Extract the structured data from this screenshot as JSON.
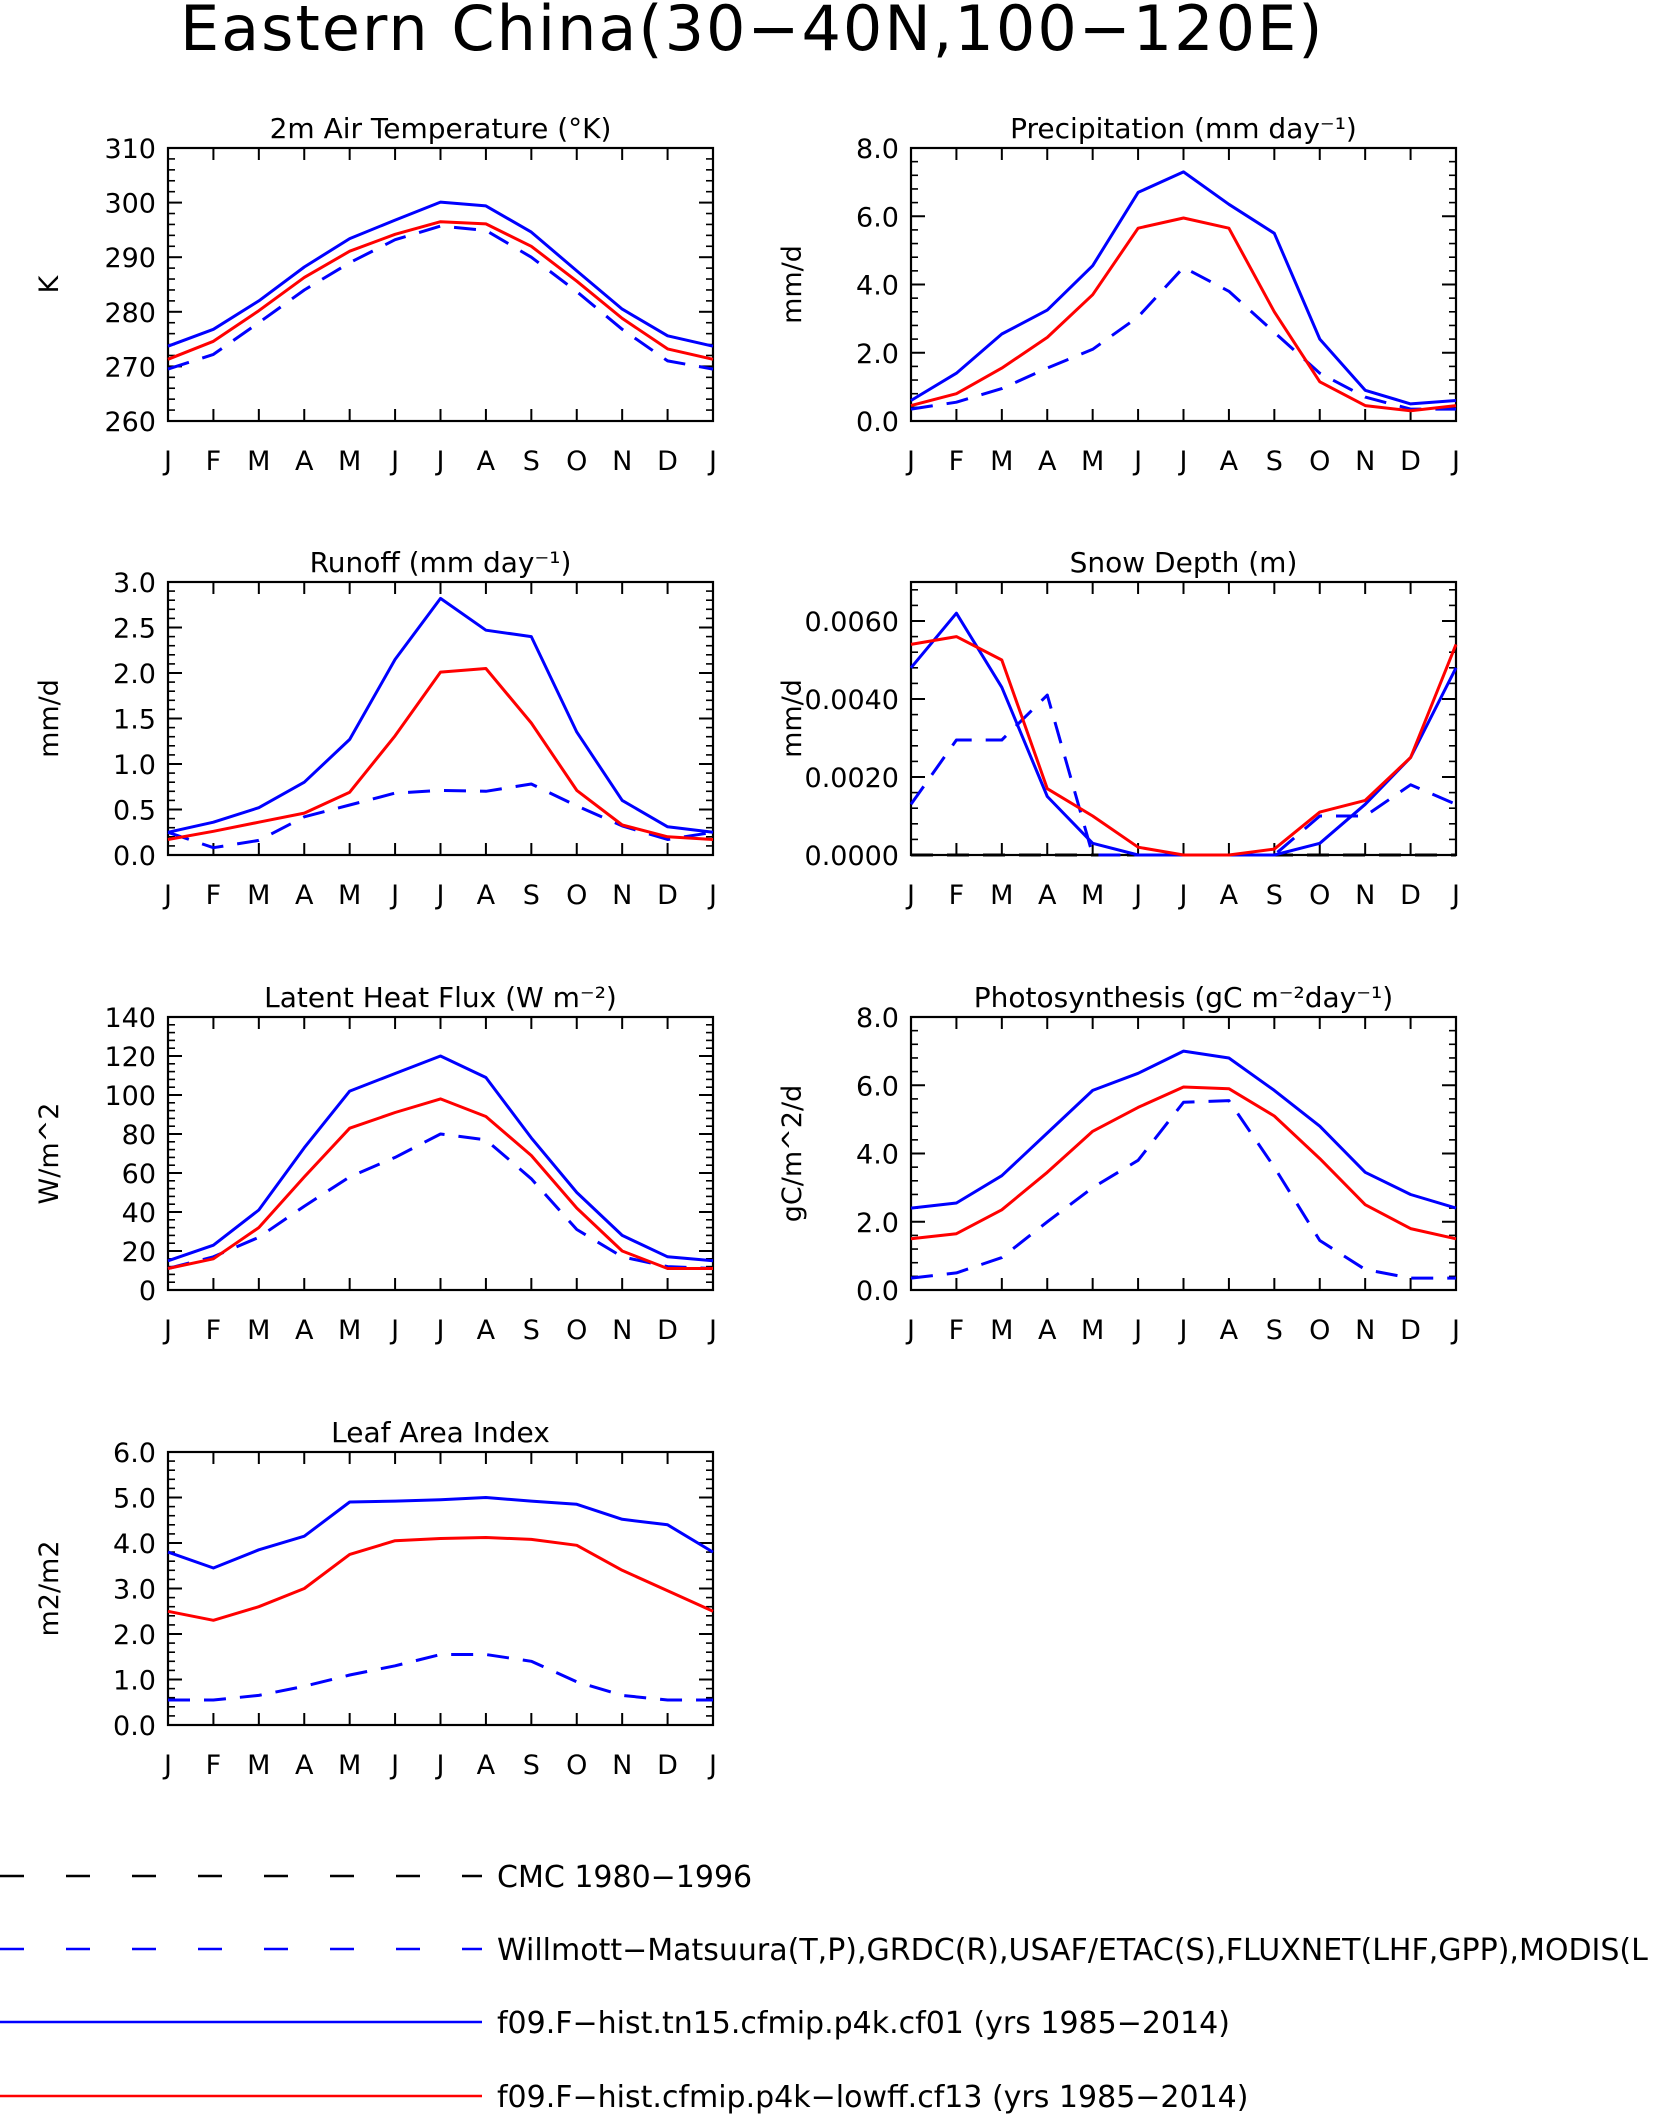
{
  "figure": {
    "title": "Eastern China(30−40N,100−120E)"
  },
  "months": [
    "J",
    "F",
    "M",
    "A",
    "M",
    "J",
    "J",
    "A",
    "S",
    "O",
    "N",
    "D",
    "J"
  ],
  "colors": {
    "axis": "#000000",
    "blue": "#0000ff",
    "red": "#ff0000",
    "black": "#000000"
  },
  "legend": [
    {
      "label": "CMC 1980−1996",
      "color": "#000000",
      "dashed": true
    },
    {
      "label": "Willmott−Matsuura(T,P),GRDC(R),USAF/ETAC(S),FLUXNET(LHF,GPP),MODIS(L",
      "color": "#0000ff",
      "dashed": true
    },
    {
      "label": "f09.F−hist.tn15.cfmip.p4k.cf01 (yrs 1985−2014)",
      "color": "#0000ff",
      "dashed": false
    },
    {
      "label": "f09.F−hist.cfmip.p4k−lowff.cf13 (yrs 1985−2014)",
      "color": "#ff0000",
      "dashed": false
    }
  ],
  "chart_data": [
    {
      "type": "line",
      "title": "2m Air Temperature (°K)",
      "ylabel": "K",
      "ylim": [
        260,
        310
      ],
      "yticks": [
        260,
        270,
        280,
        290,
        300,
        310
      ],
      "yticklabels": [
        "260",
        "270",
        "280",
        "290",
        "300",
        "310"
      ],
      "x": [
        "J",
        "F",
        "M",
        "A",
        "M",
        "J",
        "J",
        "A",
        "S",
        "O",
        "N",
        "D",
        "J"
      ],
      "series": [
        {
          "style": "obs",
          "values": [
            269.5,
            272.2,
            278.0,
            284.0,
            289.0,
            293.2,
            295.7,
            294.9,
            290.0,
            283.7,
            276.8,
            271.0,
            269.5
          ]
        },
        {
          "style": "cf01",
          "values": [
            273.7,
            276.8,
            282.0,
            288.2,
            293.4,
            296.8,
            300.1,
            299.4,
            294.6,
            287.5,
            280.5,
            275.6,
            273.7
          ]
        },
        {
          "style": "cf13",
          "values": [
            271.3,
            274.6,
            280.2,
            286.3,
            291.1,
            294.2,
            296.5,
            296.1,
            292.0,
            285.6,
            278.8,
            273.2,
            271.3
          ]
        }
      ]
    },
    {
      "type": "line",
      "title": "Precipitation (mm day⁻¹)",
      "ylabel": "mm/d",
      "ylim": [
        0,
        8
      ],
      "yticks": [
        0,
        2,
        4,
        6,
        8
      ],
      "yticklabels": [
        "0.0",
        "2.0",
        "4.0",
        "6.0",
        "8.0"
      ],
      "x": [
        "J",
        "F",
        "M",
        "A",
        "M",
        "J",
        "J",
        "A",
        "S",
        "O",
        "N",
        "D",
        "J"
      ],
      "series": [
        {
          "style": "obs",
          "values": [
            0.35,
            0.55,
            0.95,
            1.55,
            2.1,
            3.05,
            4.5,
            3.8,
            2.6,
            1.4,
            0.7,
            0.35,
            0.35
          ]
        },
        {
          "style": "cf01",
          "values": [
            0.6,
            1.4,
            2.55,
            3.25,
            4.55,
            6.7,
            7.3,
            6.35,
            5.5,
            2.4,
            0.9,
            0.5,
            0.6
          ]
        },
        {
          "style": "cf13",
          "values": [
            0.45,
            0.8,
            1.55,
            2.45,
            3.7,
            5.65,
            5.95,
            5.65,
            3.2,
            1.15,
            0.45,
            0.3,
            0.45
          ]
        }
      ]
    },
    {
      "type": "line",
      "title": "Runoff (mm day⁻¹)",
      "ylabel": "mm/d",
      "ylim": [
        0,
        3
      ],
      "yticks": [
        0,
        0.5,
        1,
        1.5,
        2,
        2.5,
        3
      ],
      "yticklabels": [
        "0.0",
        "0.5",
        "1.0",
        "1.5",
        "2.0",
        "2.5",
        "3.0"
      ],
      "x": [
        "J",
        "F",
        "M",
        "A",
        "M",
        "J",
        "J",
        "A",
        "S",
        "O",
        "N",
        "D",
        "J"
      ],
      "series": [
        {
          "style": "obs",
          "values": [
            0.25,
            0.08,
            0.16,
            0.42,
            0.55,
            0.68,
            0.71,
            0.7,
            0.78,
            0.54,
            0.32,
            0.17,
            0.25
          ]
        },
        {
          "style": "cf01",
          "values": [
            0.25,
            0.36,
            0.52,
            0.8,
            1.27,
            2.15,
            2.82,
            2.47,
            2.4,
            1.35,
            0.6,
            0.31,
            0.25
          ]
        },
        {
          "style": "cf13",
          "values": [
            0.17,
            0.26,
            0.36,
            0.46,
            0.69,
            1.31,
            2.01,
            2.05,
            1.45,
            0.71,
            0.33,
            0.2,
            0.17
          ]
        }
      ]
    },
    {
      "type": "line",
      "title": "Snow Depth (m)",
      "ylabel": "mm/d",
      "ylim": [
        0,
        0.007
      ],
      "yticks": [
        0,
        0.002,
        0.004,
        0.006
      ],
      "yticklabels": [
        "0.0000",
        "0.0020",
        "0.0040",
        "0.0060"
      ],
      "x": [
        "J",
        "F",
        "M",
        "A",
        "M",
        "J",
        "J",
        "A",
        "S",
        "O",
        "N",
        "D",
        "J"
      ],
      "series": [
        {
          "style": "cmc",
          "values": [
            0,
            0,
            0,
            0,
            0,
            0,
            0,
            0,
            0,
            0,
            0,
            0,
            0
          ]
        },
        {
          "style": "obs",
          "values": [
            0.0013,
            0.00295,
            0.00295,
            0.0041,
            0.0,
            0.0,
            0.0,
            0.0,
            0.0,
            0.001,
            0.001,
            0.0018,
            0.0013
          ]
        },
        {
          "style": "cf01",
          "values": [
            0.0048,
            0.0062,
            0.0043,
            0.0015,
            0.0003,
            0.0,
            0.0,
            0.0,
            0.0,
            0.0003,
            0.0013,
            0.0025,
            0.0048
          ]
        },
        {
          "style": "cf13",
          "values": [
            0.0054,
            0.0056,
            0.005,
            0.0017,
            0.001,
            0.0002,
            0.0,
            0.0,
            0.00015,
            0.0011,
            0.0014,
            0.0025,
            0.0054
          ]
        }
      ]
    },
    {
      "type": "line",
      "title": "Latent Heat Flux (W m⁻²)",
      "ylabel": "W/m^2",
      "ylim": [
        0,
        140
      ],
      "yticks": [
        0,
        20,
        40,
        60,
        80,
        100,
        120,
        140
      ],
      "yticklabels": [
        "0",
        "20",
        "40",
        "60",
        "80",
        "100",
        "120",
        "140"
      ],
      "x": [
        "J",
        "F",
        "M",
        "A",
        "M",
        "J",
        "J",
        "A",
        "S",
        "O",
        "N",
        "D",
        "J"
      ],
      "series": [
        {
          "style": "obs",
          "values": [
            11,
            17,
            27,
            43,
            58,
            68,
            80,
            77,
            57,
            31,
            17,
            12,
            11
          ]
        },
        {
          "style": "cf01",
          "values": [
            15,
            23,
            41,
            73,
            102,
            111,
            120,
            109,
            78,
            50,
            28,
            17,
            15
          ]
        },
        {
          "style": "cf13",
          "values": [
            11,
            16,
            32,
            58,
            83,
            91,
            98,
            89,
            69,
            42,
            20,
            11,
            11
          ]
        }
      ]
    },
    {
      "type": "line",
      "title": "Photosynthesis (gC m⁻²day⁻¹)",
      "ylabel": "gC/m^2/d",
      "ylim": [
        0,
        8
      ],
      "yticks": [
        0,
        2,
        4,
        6,
        8
      ],
      "yticklabels": [
        "0.0",
        "2.0",
        "4.0",
        "6.0",
        "8.0"
      ],
      "x": [
        "J",
        "F",
        "M",
        "A",
        "M",
        "J",
        "J",
        "A",
        "S",
        "O",
        "N",
        "D",
        "J"
      ],
      "series": [
        {
          "style": "obs",
          "values": [
            0.35,
            0.5,
            0.95,
            2.0,
            3.0,
            3.8,
            5.5,
            5.55,
            3.6,
            1.45,
            0.6,
            0.35,
            0.35
          ]
        },
        {
          "style": "cf01",
          "values": [
            2.4,
            2.55,
            3.35,
            4.6,
            5.85,
            6.35,
            7.0,
            6.8,
            5.85,
            4.8,
            3.45,
            2.8,
            2.4
          ]
        },
        {
          "style": "cf13",
          "values": [
            1.5,
            1.65,
            2.35,
            3.45,
            4.65,
            5.35,
            5.95,
            5.9,
            5.1,
            3.85,
            2.5,
            1.8,
            1.5
          ]
        }
      ]
    },
    {
      "type": "line",
      "title": "Leaf Area Index",
      "ylabel": "m2/m2",
      "ylim": [
        0,
        6
      ],
      "yticks": [
        0,
        1,
        2,
        3,
        4,
        5,
        6
      ],
      "yticklabels": [
        "0.0",
        "1.0",
        "2.0",
        "3.0",
        "4.0",
        "5.0",
        "6.0"
      ],
      "x": [
        "J",
        "F",
        "M",
        "A",
        "M",
        "J",
        "J",
        "A",
        "S",
        "O",
        "N",
        "D",
        "J"
      ],
      "series": [
        {
          "style": "obs",
          "values": [
            0.55,
            0.55,
            0.65,
            0.85,
            1.1,
            1.3,
            1.55,
            1.55,
            1.4,
            0.95,
            0.65,
            0.55,
            0.55
          ]
        },
        {
          "style": "cf01",
          "values": [
            3.8,
            3.45,
            3.85,
            4.15,
            4.9,
            4.92,
            4.95,
            5.0,
            4.92,
            4.85,
            4.52,
            4.4,
            3.8
          ]
        },
        {
          "style": "cf13",
          "values": [
            2.5,
            2.3,
            2.6,
            3.0,
            3.75,
            4.05,
            4.1,
            4.12,
            4.08,
            3.95,
            3.4,
            2.95,
            2.5
          ]
        }
      ]
    }
  ]
}
